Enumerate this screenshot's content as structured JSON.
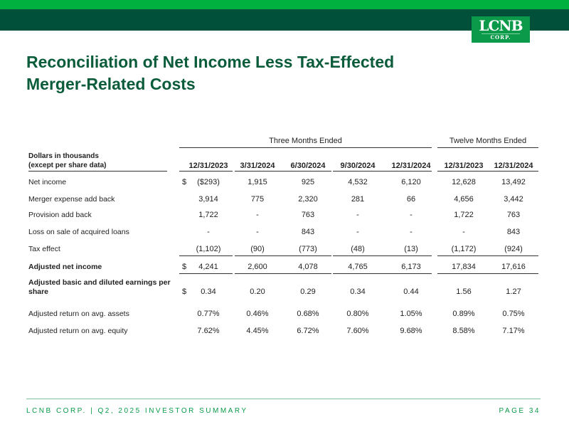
{
  "header": {
    "logo_text": "LCNB",
    "logo_sub": "CORP.",
    "accent": "#00b140",
    "dark": "#00503a"
  },
  "title_line1": "Reconciliation of Net Income Less Tax-Effected",
  "title_line2": "Merger-Related Costs",
  "table": {
    "group_three": "Three Months Ended",
    "group_twelve": "Twelve Months Ended",
    "label_header_1": "Dollars in thousands",
    "label_header_2": "(except per share data)",
    "columns": [
      "12/31/2023",
      "3/31/2024",
      "6/30/2024",
      "9/30/2024",
      "12/31/2024",
      "12/31/2023",
      "12/31/2024"
    ],
    "rows": [
      {
        "label": "Net income",
        "dollar": "$",
        "values": [
          "($293)",
          "1,915",
          "925",
          "4,532",
          "6,120",
          "12,628",
          "13,492"
        ]
      },
      {
        "label": "Merger expense add back",
        "values": [
          "3,914",
          "775",
          "2,320",
          "281",
          "66",
          "4,656",
          "3,442"
        ]
      },
      {
        "label": "Provision add back",
        "values": [
          "1,722",
          "-",
          "763",
          "-",
          "-",
          "1,722",
          "763"
        ]
      },
      {
        "label": "Loss on sale of acquired loans",
        "values": [
          "-",
          "-",
          "843",
          "-",
          "-",
          "-",
          "843"
        ]
      },
      {
        "label": "Tax effect",
        "values": [
          "(1,102)",
          "(90)",
          "(773)",
          "(48)",
          "(13)",
          "(1,172)",
          "(924)"
        ]
      },
      {
        "label": "Adjusted net income",
        "dollar": "$",
        "values": [
          "4,241",
          "2,600",
          "4,078",
          "4,765",
          "6,173",
          "17,834",
          "17,616"
        ]
      },
      {
        "label": "Adjusted basic and diluted earnings per",
        "label2": "share",
        "dollar": "$",
        "values": [
          "0.34",
          "0.20",
          "0.29",
          "0.34",
          "0.44",
          "1.56",
          "1.27"
        ]
      },
      {
        "label": "Adjusted return on avg. assets",
        "values": [
          "0.77%",
          "0.46%",
          "0.68%",
          "0.80%",
          "1.05%",
          "0.89%",
          "0.75%"
        ]
      },
      {
        "label": "Adjusted return on avg. equity",
        "values": [
          "7.62%",
          "4.45%",
          "6.72%",
          "7.60%",
          "9.68%",
          "8.58%",
          "7.17%"
        ]
      }
    ]
  },
  "footer": {
    "left": "LCNB CORP. | Q2, 2025 INVESTOR SUMMARY",
    "right": "PAGE 34"
  }
}
